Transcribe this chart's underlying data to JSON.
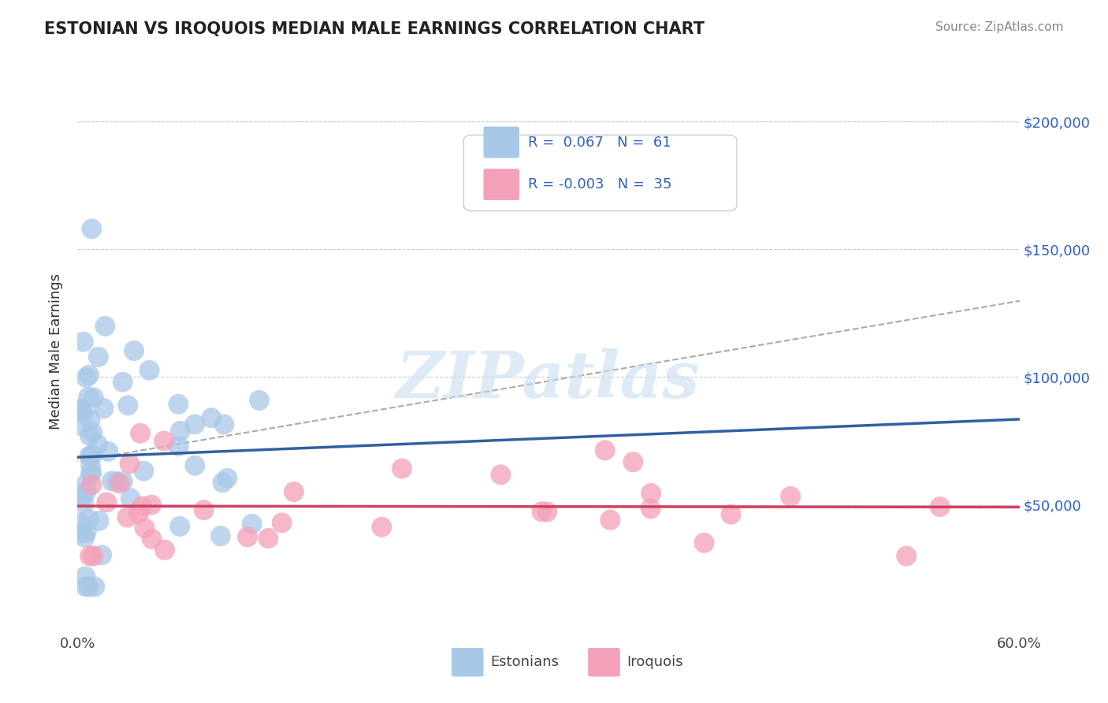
{
  "title": "ESTONIAN VS IROQUOIS MEDIAN MALE EARNINGS CORRELATION CHART",
  "source": "Source: ZipAtlas.com",
  "ylabel": "Median Male Earnings",
  "xlim": [
    0.0,
    0.6
  ],
  "ylim": [
    0,
    220000
  ],
  "yticks": [
    50000,
    100000,
    150000,
    200000
  ],
  "ytick_labels": [
    "$50,000",
    "$100,000",
    "$150,000",
    "$200,000"
  ],
  "xtick_labels": [
    "0.0%",
    "60.0%"
  ],
  "grid_color": "#cccccc",
  "background_color": "#ffffff",
  "estonian_R": "0.067",
  "estonian_N": "61",
  "iroquois_R": "-0.003",
  "iroquois_N": "35",
  "estonian_color": "#a8c8e8",
  "estonian_line_color": "#3060a0",
  "iroquois_color": "#f4a0b8",
  "iroquois_line_color": "#d04060",
  "trend_line_color": "#aaaaaa",
  "legend_text_color": "#3060c0",
  "ytick_color": "#3060c0",
  "watermark_text": "ZIPatlas",
  "watermark_color": "#c8dff0"
}
